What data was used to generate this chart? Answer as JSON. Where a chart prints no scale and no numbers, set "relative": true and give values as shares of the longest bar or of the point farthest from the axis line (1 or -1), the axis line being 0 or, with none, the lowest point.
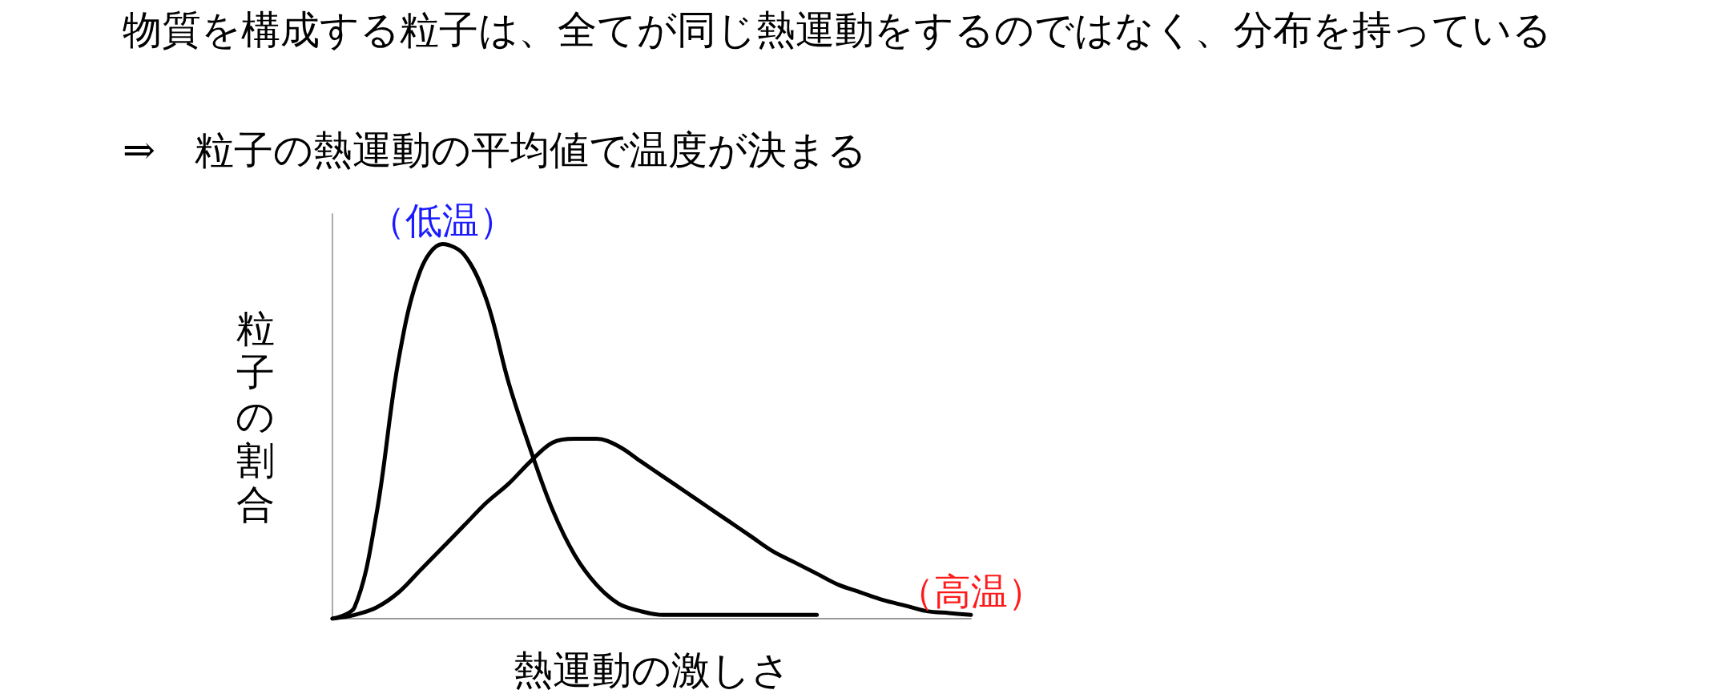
{
  "chart_data": {
    "type": "line",
    "title": "物質を構成する粒子は、全てが同じ熱運動をするのではなく、分布を持っている",
    "subtitle": "⇒　粒子の熱運動の平均値で温度が決まる",
    "xlabel": "熱運動の激しさ",
    "ylabel": "粒子の割合",
    "relative": true,
    "grid": false,
    "legend": false,
    "marker": "none",
    "line_style": "solid",
    "categories": [
      null,
      null,
      null,
      null,
      null,
      null,
      null,
      null,
      null,
      null,
      null,
      null,
      null,
      null,
      null,
      null,
      null,
      null,
      null,
      null,
      null,
      null,
      null,
      null,
      null,
      null,
      null,
      null,
      null,
      null
    ],
    "series": [
      {
        "name": "（低温）",
        "color": "#000000",
        "values": [
          0,
          0.03,
          0.28,
          0.69,
          0.93,
          1,
          0.97,
          0.85,
          0.63,
          0.45,
          0.29,
          0.17,
          0.09,
          0.04,
          0.02,
          0.01,
          0.01,
          0.01,
          0.01,
          0.01,
          0.01,
          0.01,
          0.01,
          null,
          null,
          null,
          null,
          null,
          null,
          null
        ]
      },
      {
        "name": "（高温）",
        "color": "#000000",
        "values": [
          0,
          0.01,
          0.03,
          0.07,
          0.13,
          0.19,
          0.25,
          0.31,
          0.36,
          0.42,
          0.47,
          0.48,
          0.48,
          0.46,
          0.42,
          0.38,
          0.34,
          0.3,
          0.26,
          0.22,
          0.18,
          0.15,
          0.12,
          0.09,
          0.07,
          0.05,
          0.035,
          0.02,
          0.015,
          0.01
        ]
      }
    ]
  }
}
